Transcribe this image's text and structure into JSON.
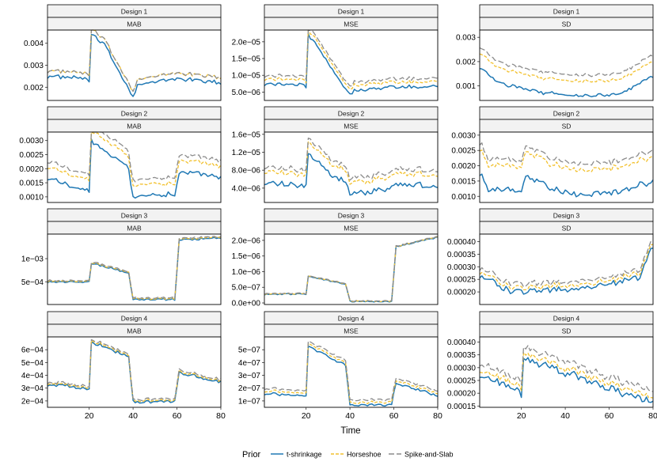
{
  "chart_data": {
    "type": "line",
    "xlabel": "Time",
    "x_ticks": [
      20,
      40,
      60,
      80
    ],
    "x_range": [
      1,
      80
    ],
    "legend": {
      "title": "Prior",
      "position": "bottom",
      "entries": [
        {
          "name": "t-shrinkage",
          "color": "#1f78b4",
          "dash": "solid"
        },
        {
          "name": "Horseshoe",
          "color": "#f2c12e",
          "dash": "dashed"
        },
        {
          "name": "Spike-and-Slab",
          "color": "#8c8c8c",
          "dash": "longdash"
        }
      ]
    },
    "facet_labels": {
      "rows": [
        "Design 1",
        "Design 2",
        "Design 3",
        "Design 4"
      ],
      "cols": [
        "MAB",
        "MSE",
        "SD"
      ]
    },
    "panels": [
      {
        "design": "Design 1",
        "metric": "MAB",
        "ylim": [
          0.0014,
          0.0046
        ],
        "yticks": [
          {
            "v": 0.002,
            "label": "0.002"
          },
          {
            "v": 0.003,
            "label": "0.003"
          },
          {
            "v": 0.004,
            "label": "0.004"
          }
        ],
        "t_anchors": [
          [
            1,
            0.0025
          ],
          [
            19,
            0.0024
          ],
          [
            20,
            0.0022
          ],
          [
            21,
            0.0044
          ],
          [
            27,
            0.0039
          ],
          [
            40,
            0.0016
          ],
          [
            42,
            0.0021
          ],
          [
            60,
            0.0024
          ],
          [
            80,
            0.0022
          ]
        ],
        "offsets": [
          0,
          0.00025,
          0.00025
        ],
        "noise": 8e-05
      },
      {
        "design": "Design 1",
        "metric": "MSE",
        "ylim": [
          2.5e-06,
          2.35e-05
        ],
        "yticks": [
          {
            "v": 5e-06,
            "label": "5.0e−06"
          },
          {
            "v": 1e-05,
            "label": "1.0e−05"
          },
          {
            "v": 1.5e-05,
            "label": "1.5e−05"
          },
          {
            "v": 2e-05,
            "label": "2.0e−05"
          }
        ],
        "t_anchors": [
          [
            1,
            7.5e-06
          ],
          [
            19,
            7e-06
          ],
          [
            20,
            6.5e-06
          ],
          [
            21,
            2.2e-05
          ],
          [
            27,
            1.7e-05
          ],
          [
            40,
            4e-06
          ],
          [
            42,
            5.5e-06
          ],
          [
            60,
            6.5e-06
          ],
          [
            80,
            6.5e-06
          ]
        ],
        "offsets": [
          0,
          1.5e-06,
          2.5e-06
        ],
        "noise": 5e-07
      },
      {
        "design": "Design 1",
        "metric": "SD",
        "ylim": [
          0.0004,
          0.0033
        ],
        "yticks": [
          {
            "v": 0.001,
            "label": "0.001"
          },
          {
            "v": 0.002,
            "label": "0.002"
          },
          {
            "v": 0.003,
            "label": "0.003"
          }
        ],
        "t_anchors": [
          [
            1,
            0.0018
          ],
          [
            10,
            0.0011
          ],
          [
            30,
            0.0007
          ],
          [
            50,
            0.0006
          ],
          [
            65,
            0.00065
          ],
          [
            80,
            0.0014
          ]
        ],
        "offsets": [
          0,
          0.0006,
          0.00085
        ],
        "noise": 7e-05
      },
      {
        "design": "Design 2",
        "metric": "MAB",
        "ylim": [
          0.0008,
          0.0033
        ],
        "yticks": [
          {
            "v": 0.001,
            "label": "0.0010"
          },
          {
            "v": 0.0015,
            "label": "0.0015"
          },
          {
            "v": 0.002,
            "label": "0.0020"
          },
          {
            "v": 0.0025,
            "label": "0.0025"
          },
          {
            "v": 0.003,
            "label": "0.0030"
          }
        ],
        "t_anchors": [
          [
            1,
            0.0017
          ],
          [
            19,
            0.0012
          ],
          [
            20,
            0.0012
          ],
          [
            21,
            0.003
          ],
          [
            30,
            0.0025
          ],
          [
            38,
            0.002
          ],
          [
            40,
            0.00095
          ],
          [
            59,
            0.0011
          ],
          [
            61,
            0.0019
          ],
          [
            80,
            0.0017
          ]
        ],
        "offsets": [
          0,
          0.0004,
          0.0006
        ],
        "noise": 8e-05
      },
      {
        "design": "Design 2",
        "metric": "MSE",
        "ylim": [
          8e-07,
          1.65e-05
        ],
        "yticks": [
          {
            "v": 4e-06,
            "label": "4.0e−06"
          },
          {
            "v": 8e-06,
            "label": "8.0e−06"
          },
          {
            "v": 1.2e-05,
            "label": "1.2e−05"
          },
          {
            "v": 1.6e-05,
            "label": "1.6e−05"
          }
        ],
        "t_anchors": [
          [
            1,
            5.5e-06
          ],
          [
            19,
            4.5e-06
          ],
          [
            20,
            4.5e-06
          ],
          [
            21,
            1.2e-05
          ],
          [
            30,
            7.5e-06
          ],
          [
            38,
            5.5e-06
          ],
          [
            40,
            2.5e-06
          ],
          [
            59,
            4e-06
          ],
          [
            61,
            5e-06
          ],
          [
            80,
            4.5e-06
          ]
        ],
        "offsets": [
          0,
          2.5e-06,
          3.5e-06
        ],
        "noise": 6e-07
      },
      {
        "design": "Design 2",
        "metric": "SD",
        "ylim": [
          0.0008,
          0.0031
        ],
        "yticks": [
          {
            "v": 0.001,
            "label": "0.0010"
          },
          {
            "v": 0.0015,
            "label": "0.0015"
          },
          {
            "v": 0.002,
            "label": "0.0020"
          },
          {
            "v": 0.0025,
            "label": "0.0025"
          },
          {
            "v": 0.003,
            "label": "0.0030"
          }
        ],
        "t_anchors": [
          [
            1,
            0.0018
          ],
          [
            5,
            0.0012
          ],
          [
            20,
            0.0012
          ],
          [
            22,
            0.0016
          ],
          [
            40,
            0.0011
          ],
          [
            60,
            0.0011
          ],
          [
            80,
            0.0015
          ]
        ],
        "offsets": [
          0,
          0.0008,
          0.001
        ],
        "noise": 0.0001
      },
      {
        "design": "Design 3",
        "metric": "MAB",
        "ylim": [
          1e-05,
          0.00153
        ],
        "yticks": [
          {
            "v": 0.0005,
            "label": "5e−04"
          },
          {
            "v": 0.001,
            "label": "1e−03"
          }
        ],
        "t_anchors": [
          [
            1,
            0.0005
          ],
          [
            19,
            0.0005
          ],
          [
            20,
            0.0005
          ],
          [
            21,
            0.0009
          ],
          [
            38,
            0.0007
          ],
          [
            40,
            0.00012
          ],
          [
            59,
            0.00012
          ],
          [
            61,
            0.0014
          ],
          [
            80,
            0.00145
          ]
        ],
        "offsets": [
          0,
          1.5e-05,
          3e-05
        ],
        "noise": 2e-05
      },
      {
        "design": "Design 3",
        "metric": "MSE",
        "ylim": [
          -5e-08,
          2.2e-06
        ],
        "yticks": [
          {
            "v": 0,
            "label": "0.0e+00"
          },
          {
            "v": 5e-07,
            "label": "5.0e−07"
          },
          {
            "v": 1e-06,
            "label": "1.0e−06"
          },
          {
            "v": 1.5e-06,
            "label": "1.5e−06"
          },
          {
            "v": 2e-06,
            "label": "2.0e−06"
          }
        ],
        "t_anchors": [
          [
            1,
            2.8e-07
          ],
          [
            19,
            2.8e-07
          ],
          [
            20,
            2.8e-07
          ],
          [
            21,
            8.5e-07
          ],
          [
            38,
            6e-07
          ],
          [
            40,
            5e-08
          ],
          [
            59,
            5e-08
          ],
          [
            61,
            1.8e-06
          ],
          [
            80,
            2.1e-06
          ]
        ],
        "offsets": [
          0,
          1e-08,
          2e-08
        ],
        "noise": 2e-08
      },
      {
        "design": "Design 3",
        "metric": "SD",
        "ylim": [
          0.00015,
          0.00043
        ],
        "yticks": [
          {
            "v": 0.0002,
            "label": "0.00020"
          },
          {
            "v": 0.00025,
            "label": "0.00025"
          },
          {
            "v": 0.0003,
            "label": "0.00030"
          },
          {
            "v": 0.00035,
            "label": "0.00035"
          },
          {
            "v": 0.0004,
            "label": "0.00040"
          }
        ],
        "t_anchors": [
          [
            1,
            0.00027
          ],
          [
            15,
            0.0002
          ],
          [
            40,
            0.00021
          ],
          [
            60,
            0.00023
          ],
          [
            74,
            0.00026
          ],
          [
            80,
            0.00038
          ]
        ],
        "offsets": [
          0,
          1.5e-05,
          3e-05
        ],
        "noise": 1.2e-05
      },
      {
        "design": "Design 4",
        "metric": "MAB",
        "ylim": [
          0.00015,
          0.0007
        ],
        "yticks": [
          {
            "v": 0.0002,
            "label": "2e−04"
          },
          {
            "v": 0.0003,
            "label": "3e−04"
          },
          {
            "v": 0.0004,
            "label": "4e−04"
          },
          {
            "v": 0.0005,
            "label": "5e−04"
          },
          {
            "v": 0.0006,
            "label": "6e−04"
          }
        ],
        "t_anchors": [
          [
            1,
            0.00033
          ],
          [
            19,
            0.0003
          ],
          [
            20,
            0.0003
          ],
          [
            21,
            0.00066
          ],
          [
            38,
            0.00055
          ],
          [
            40,
            0.00019
          ],
          [
            59,
            0.00019
          ],
          [
            61,
            0.00042
          ],
          [
            80,
            0.00035
          ]
        ],
        "offsets": [
          0,
          1e-05,
          2e-05
        ],
        "noise": 1.2e-05
      },
      {
        "design": "Design 4",
        "metric": "MSE",
        "ylim": [
          5e-08,
          6e-07
        ],
        "yticks": [
          {
            "v": 1e-07,
            "label": "1e−07"
          },
          {
            "v": 2e-07,
            "label": "2e−07"
          },
          {
            "v": 3e-07,
            "label": "3e−07"
          },
          {
            "v": 4e-07,
            "label": "4e−07"
          },
          {
            "v": 5e-07,
            "label": "5e−07"
          }
        ],
        "t_anchors": [
          [
            1,
            1.6e-07
          ],
          [
            19,
            1.4e-07
          ],
          [
            20,
            1.4e-07
          ],
          [
            21,
            5.2e-07
          ],
          [
            38,
            3.8e-07
          ],
          [
            40,
            7e-08
          ],
          [
            59,
            7e-08
          ],
          [
            61,
            2.4e-07
          ],
          [
            80,
            1.4e-07
          ]
        ],
        "offsets": [
          0,
          2e-08,
          4e-08
        ],
        "noise": 1e-08
      },
      {
        "design": "Design 4",
        "metric": "SD",
        "ylim": [
          0.000145,
          0.00042
        ],
        "yticks": [
          {
            "v": 0.00015,
            "label": "0.00015"
          },
          {
            "v": 0.0002,
            "label": "0.00020"
          },
          {
            "v": 0.00025,
            "label": "0.00025"
          },
          {
            "v": 0.0003,
            "label": "0.00030"
          },
          {
            "v": 0.00035,
            "label": "0.00035"
          },
          {
            "v": 0.0004,
            "label": "0.00040"
          }
        ],
        "t_anchors": [
          [
            1,
            0.00028
          ],
          [
            19,
            0.00021
          ],
          [
            20,
            0.0002
          ],
          [
            21,
            0.00034
          ],
          [
            40,
            0.00028
          ],
          [
            60,
            0.00022
          ],
          [
            80,
            0.00016
          ]
        ],
        "offsets": [
          0,
          2e-05,
          4.5e-05
        ],
        "noise": 1.5e-05
      }
    ]
  }
}
